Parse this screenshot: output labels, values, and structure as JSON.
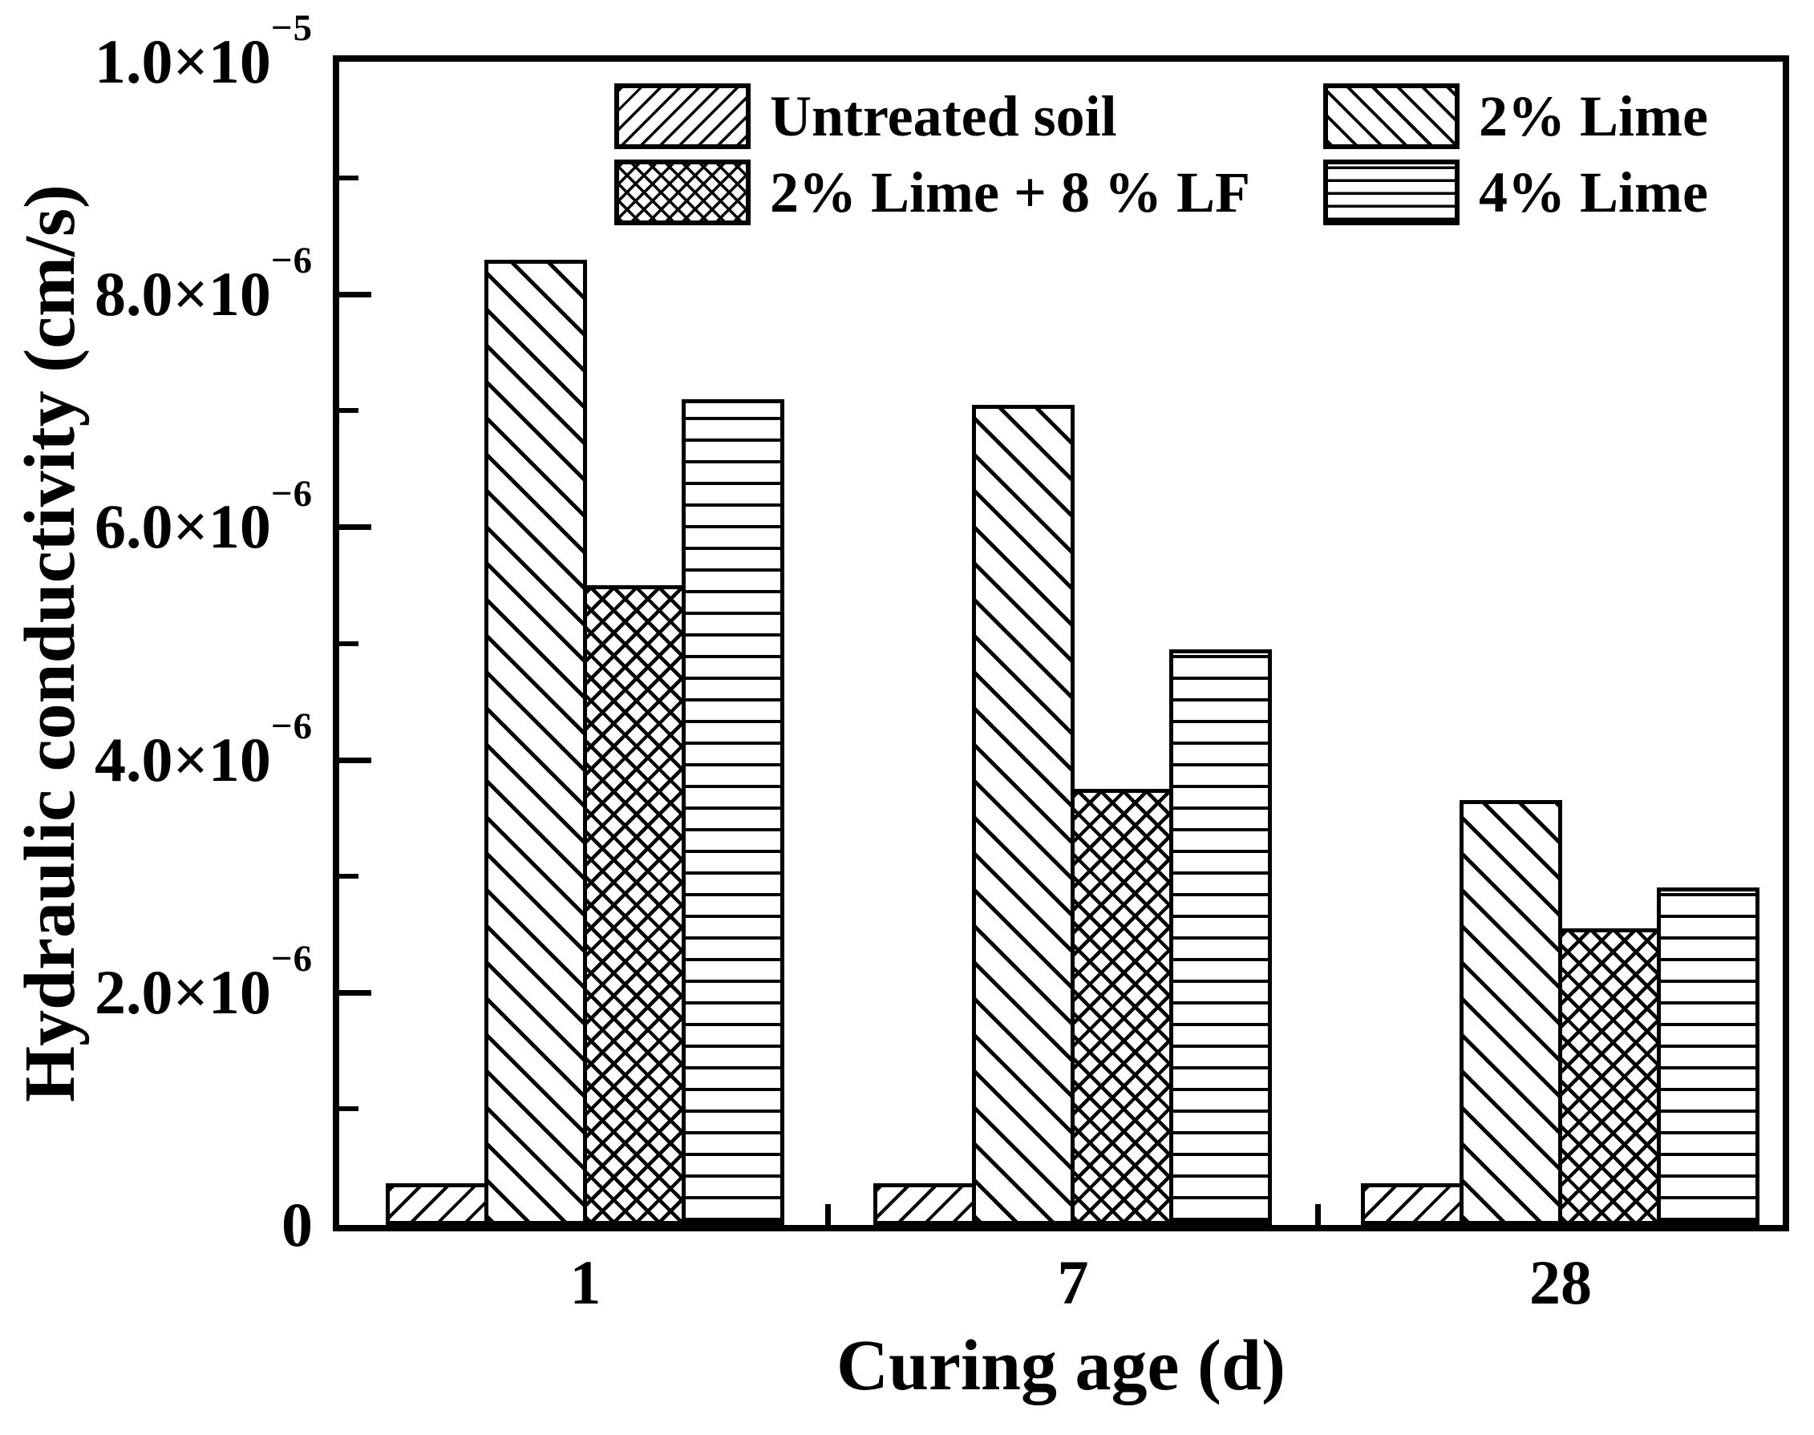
{
  "colors": {
    "ink": "#000000",
    "background": "#ffffff"
  },
  "y_axis": {
    "title": "Hydraulic conductivity (cm/s)",
    "major_ticks": [
      {
        "value": 10,
        "base": "1.0×10",
        "exp": "−5"
      },
      {
        "value": 8,
        "base": "8.0×10",
        "exp": "−6"
      },
      {
        "value": 6,
        "base": "6.0×10",
        "exp": "−6"
      },
      {
        "value": 4,
        "base": "4.0×10",
        "exp": "−6"
      },
      {
        "value": 2,
        "base": "2.0×10",
        "exp": "−6"
      },
      {
        "value": 0,
        "base": "0",
        "exp": ""
      }
    ],
    "minor_tick_values": [
      1,
      3,
      5,
      7,
      9
    ]
  },
  "x_axis": {
    "title": "Curing age (d)",
    "categories": [
      "1",
      "7",
      "28"
    ]
  },
  "chart_data": {
    "type": "bar",
    "title": "",
    "xlabel": "Curing age (d)",
    "ylabel": "Hydraulic conductivity (cm/s)",
    "categories": [
      "1",
      "7",
      "28"
    ],
    "ylim": [
      0,
      1e-05
    ],
    "units": "cm/s",
    "grid": false,
    "legend_position": "top inside plot, two columns",
    "series": [
      {
        "name": "Untreated soil",
        "hatch": "forward-diagonal",
        "values": [
          3.6e-07,
          3.6e-07,
          3.6e-07
        ]
      },
      {
        "name": "2% Lime",
        "hatch": "backward-diagonal",
        "values": [
          8.3e-06,
          7.05e-06,
          3.65e-06
        ]
      },
      {
        "name": "2% Lime + 8 % LF",
        "hatch": "crosshatch",
        "values": [
          5.5e-06,
          3.75e-06,
          2.55e-06
        ]
      },
      {
        "name": "4% Lime",
        "hatch": "horizontal",
        "values": [
          7.1e-06,
          4.95e-06,
          2.9e-06
        ]
      }
    ]
  }
}
